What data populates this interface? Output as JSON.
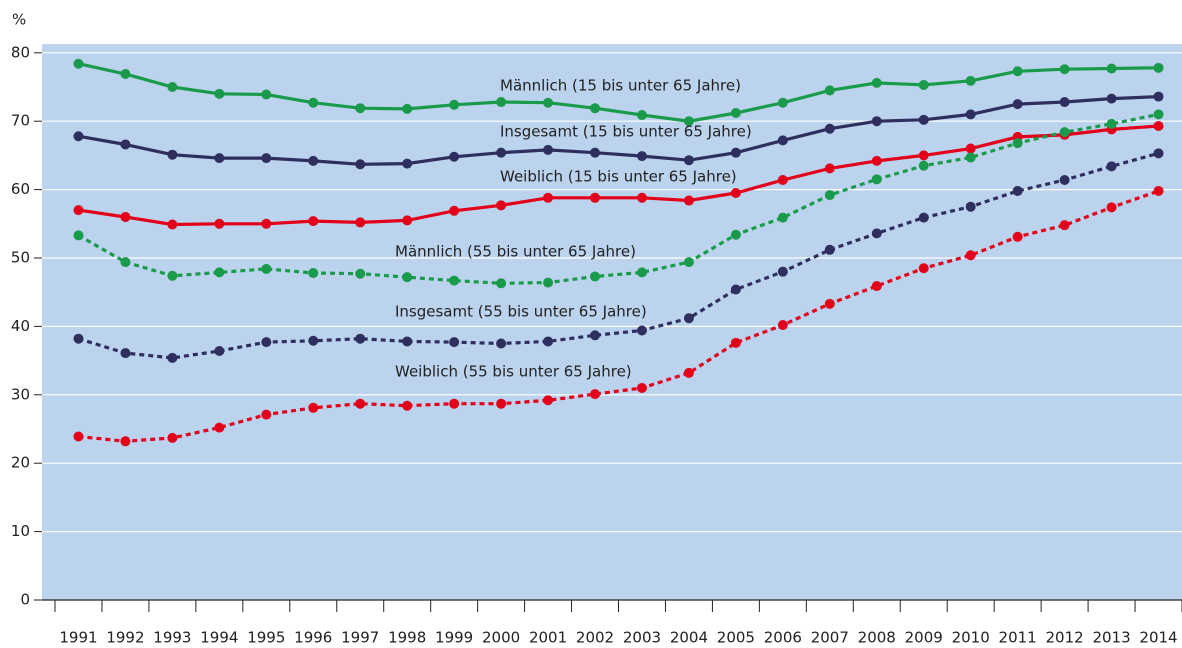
{
  "chart_data": {
    "type": "line",
    "y_label": "%",
    "categories": [
      "1991",
      "1992",
      "1993",
      "1994",
      "1995",
      "1996",
      "1997",
      "1998",
      "1999",
      "2000",
      "2001",
      "2002",
      "2003",
      "2004",
      "2005",
      "2006",
      "2007",
      "2008",
      "2009",
      "2010",
      "2011",
      "2012",
      "2013",
      "2014"
    ],
    "ylim": [
      0,
      80
    ],
    "yticks": [
      0,
      10,
      20,
      30,
      40,
      50,
      60,
      70,
      80
    ],
    "grid": true,
    "background": "#bcd3ee",
    "series": [
      {
        "name": "Männlich (15 bis unter 65 Jahre)",
        "color": "#1a9b4b",
        "dashed": false,
        "values": [
          78.4,
          76.9,
          75.0,
          74.0,
          73.9,
          72.7,
          71.9,
          71.8,
          72.4,
          72.8,
          72.7,
          71.9,
          70.9,
          70.0,
          71.2,
          72.7,
          74.5,
          75.6,
          75.3,
          75.9,
          77.3,
          77.6,
          77.7,
          77.8
        ]
      },
      {
        "name": "Insgesamt  (15 bis unter 65 Jahre)",
        "color": "#2e2f5e",
        "dashed": false,
        "values": [
          67.8,
          66.6,
          65.1,
          64.6,
          64.6,
          64.2,
          63.7,
          63.8,
          64.8,
          65.4,
          65.8,
          65.4,
          64.9,
          64.3,
          65.4,
          67.2,
          68.9,
          70.0,
          70.2,
          71.0,
          72.5,
          72.8,
          73.3,
          73.6
        ]
      },
      {
        "name": "Weiblich (15 bis unter 65 Jahre)",
        "color": "#e2001a",
        "dashed": false,
        "values": [
          57.0,
          56.0,
          54.9,
          55.0,
          55.0,
          55.4,
          55.2,
          55.5,
          56.9,
          57.7,
          58.8,
          58.8,
          58.8,
          58.4,
          59.5,
          61.4,
          63.1,
          64.2,
          65.0,
          66.0,
          67.7,
          68.0,
          68.8,
          69.3
        ]
      },
      {
        "name": "Männlich (55 bis unter 65 Jahre)",
        "color": "#1a9b4b",
        "dashed": true,
        "values": [
          53.3,
          49.4,
          47.4,
          47.9,
          48.4,
          47.8,
          47.7,
          47.2,
          46.7,
          46.3,
          46.4,
          47.3,
          47.9,
          49.4,
          53.4,
          55.9,
          59.2,
          61.5,
          63.5,
          64.7,
          66.8,
          68.4,
          69.6,
          71.0
        ]
      },
      {
        "name": "Insgesamt  (55 bis unter 65 Jahre)",
        "color": "#2e2f5e",
        "dashed": true,
        "values": [
          38.2,
          36.1,
          35.4,
          36.4,
          37.7,
          37.9,
          38.2,
          37.8,
          37.7,
          37.5,
          37.8,
          38.7,
          39.4,
          41.2,
          45.4,
          48.0,
          51.2,
          53.6,
          55.9,
          57.5,
          59.8,
          61.4,
          63.4,
          65.3
        ]
      },
      {
        "name": "Weiblich (55 bis unter 65 Jahre)",
        "color": "#e2001a",
        "dashed": true,
        "values": [
          23.9,
          23.2,
          23.7,
          25.2,
          27.1,
          28.1,
          28.7,
          28.4,
          28.7,
          28.7,
          29.2,
          30.1,
          31.0,
          33.2,
          37.6,
          40.2,
          43.3,
          45.9,
          48.5,
          50.4,
          53.1,
          54.8,
          57.4,
          59.8
        ]
      }
    ]
  }
}
